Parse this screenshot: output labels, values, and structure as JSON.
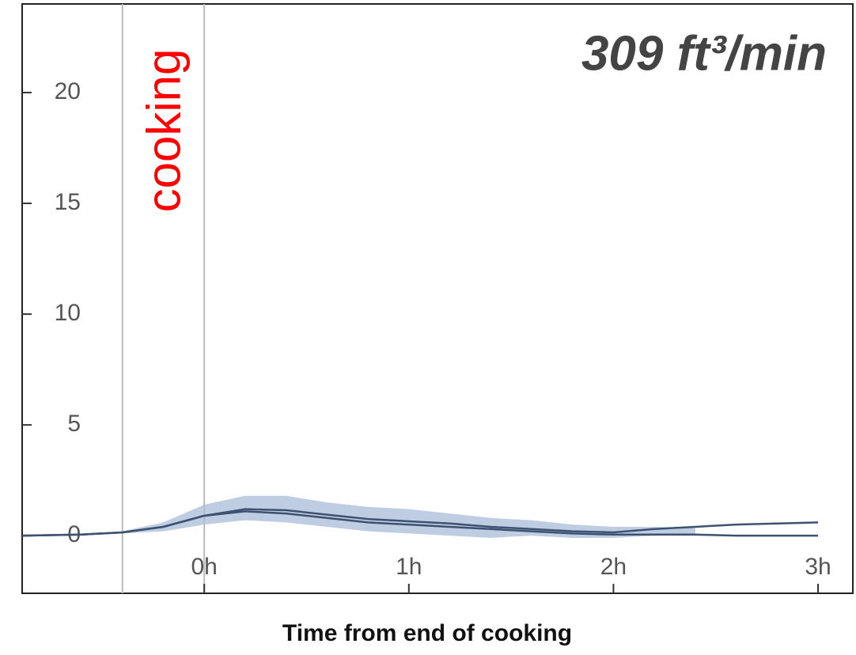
{
  "chart_data": {
    "type": "line",
    "title": "309 ft³/min",
    "xlabel": "Time from end of cooking",
    "annotation": "cooking",
    "cooking_span": [
      -0.4,
      0
    ],
    "x": [
      -0.89,
      -0.6,
      -0.4,
      -0.2,
      0,
      0.2,
      0.4,
      0.6,
      0.8,
      1.0,
      1.2,
      1.4,
      1.6,
      1.8,
      2.0,
      2.2,
      2.4,
      2.6,
      2.8,
      3.0
    ],
    "series": [
      {
        "color": "#3d5270",
        "values": [
          0,
          0.05,
          0.15,
          0.4,
          0.9,
          1.2,
          1.15,
          0.95,
          0.75,
          0.65,
          0.55,
          0.4,
          0.3,
          0.2,
          0.15,
          0.3,
          0.4,
          0.5,
          0.55,
          0.6
        ]
      },
      {
        "color": "#3d5270",
        "values": [
          0,
          0.05,
          0.15,
          0.4,
          0.9,
          1.1,
          1.0,
          0.8,
          0.6,
          0.5,
          0.4,
          0.3,
          0.2,
          0.1,
          0.05,
          0.05,
          0.05,
          0.0,
          0.0,
          0.0
        ]
      }
    ],
    "band": {
      "color": "#a9bcd9",
      "upper": [
        null,
        null,
        0.2,
        0.6,
        1.4,
        1.8,
        1.8,
        1.5,
        1.3,
        1.2,
        1.0,
        0.8,
        0.7,
        0.5,
        0.4,
        0.4,
        0.35,
        null,
        null,
        null
      ],
      "lower": [
        null,
        null,
        0.1,
        0.2,
        0.5,
        0.7,
        0.6,
        0.4,
        0.2,
        0.1,
        0.0,
        -0.1,
        0.0,
        -0.1,
        -0.1,
        0.0,
        0.0,
        null,
        null,
        null
      ]
    },
    "xlim": [
      -0.89,
      3.17
    ],
    "ylim": [
      -2.6,
      24
    ],
    "xticks": [
      {
        "value": 0,
        "label": "0h"
      },
      {
        "value": 1,
        "label": "1h"
      },
      {
        "value": 2,
        "label": "2h"
      },
      {
        "value": 3,
        "label": "3h"
      }
    ],
    "yticks": [
      0,
      5,
      10,
      15,
      20
    ]
  }
}
